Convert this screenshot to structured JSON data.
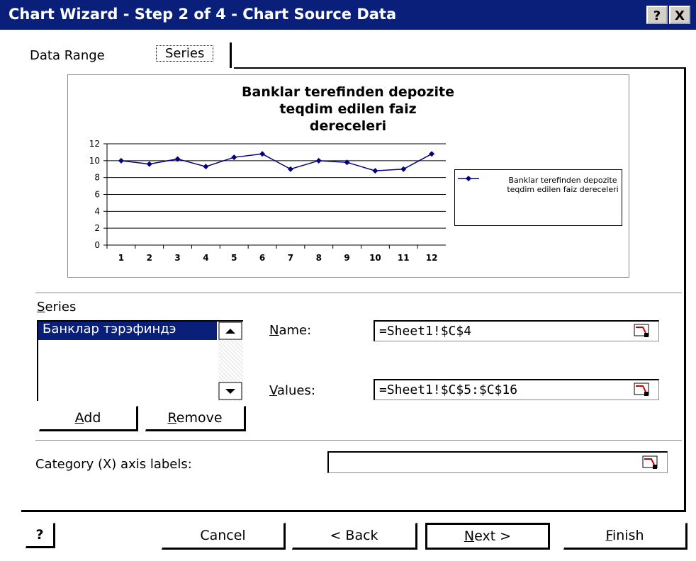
{
  "window": {
    "title": "Chart Wizard - Step 2 of 4 - Chart Source Data",
    "help": "?",
    "close": "X"
  },
  "tabs": [
    "Data Range",
    "Series"
  ],
  "chart": {
    "type": "line",
    "title": "Banklar terefinden depozite teqdim edilen faiz dereceleri",
    "categories": [
      "1",
      "2",
      "3",
      "4",
      "5",
      "6",
      "7",
      "8",
      "9",
      "10",
      "11",
      "12"
    ],
    "series": [
      {
        "name": "Banklar terefinden depozite teqdim edilen faiz dereceleri",
        "color": "#000080",
        "values": [
          10,
          9.6,
          10.2,
          9.3,
          10.4,
          10.8,
          9.0,
          10.0,
          9.8,
          8.8,
          9.0,
          10.8
        ]
      }
    ],
    "ylim": [
      0,
      12
    ],
    "yticks": [
      0,
      2,
      4,
      6,
      8,
      10,
      12
    ],
    "grid": true,
    "legend": "right"
  },
  "series_section": {
    "label": "Series",
    "list_items": [
      "Банклар тэрэфиндэ"
    ],
    "add": "Add",
    "remove": "Remove",
    "name_label": "Name:",
    "name_value": "=Sheet1!$C$4",
    "values_label": "Values:",
    "values_value": "=Sheet1!$C$5:$C$16",
    "category_label": "Category (X) axis labels:"
  },
  "buttons": {
    "help": "?",
    "cancel": "Cancel",
    "back": "< Back",
    "next": "Next >",
    "finish": "Finish"
  }
}
